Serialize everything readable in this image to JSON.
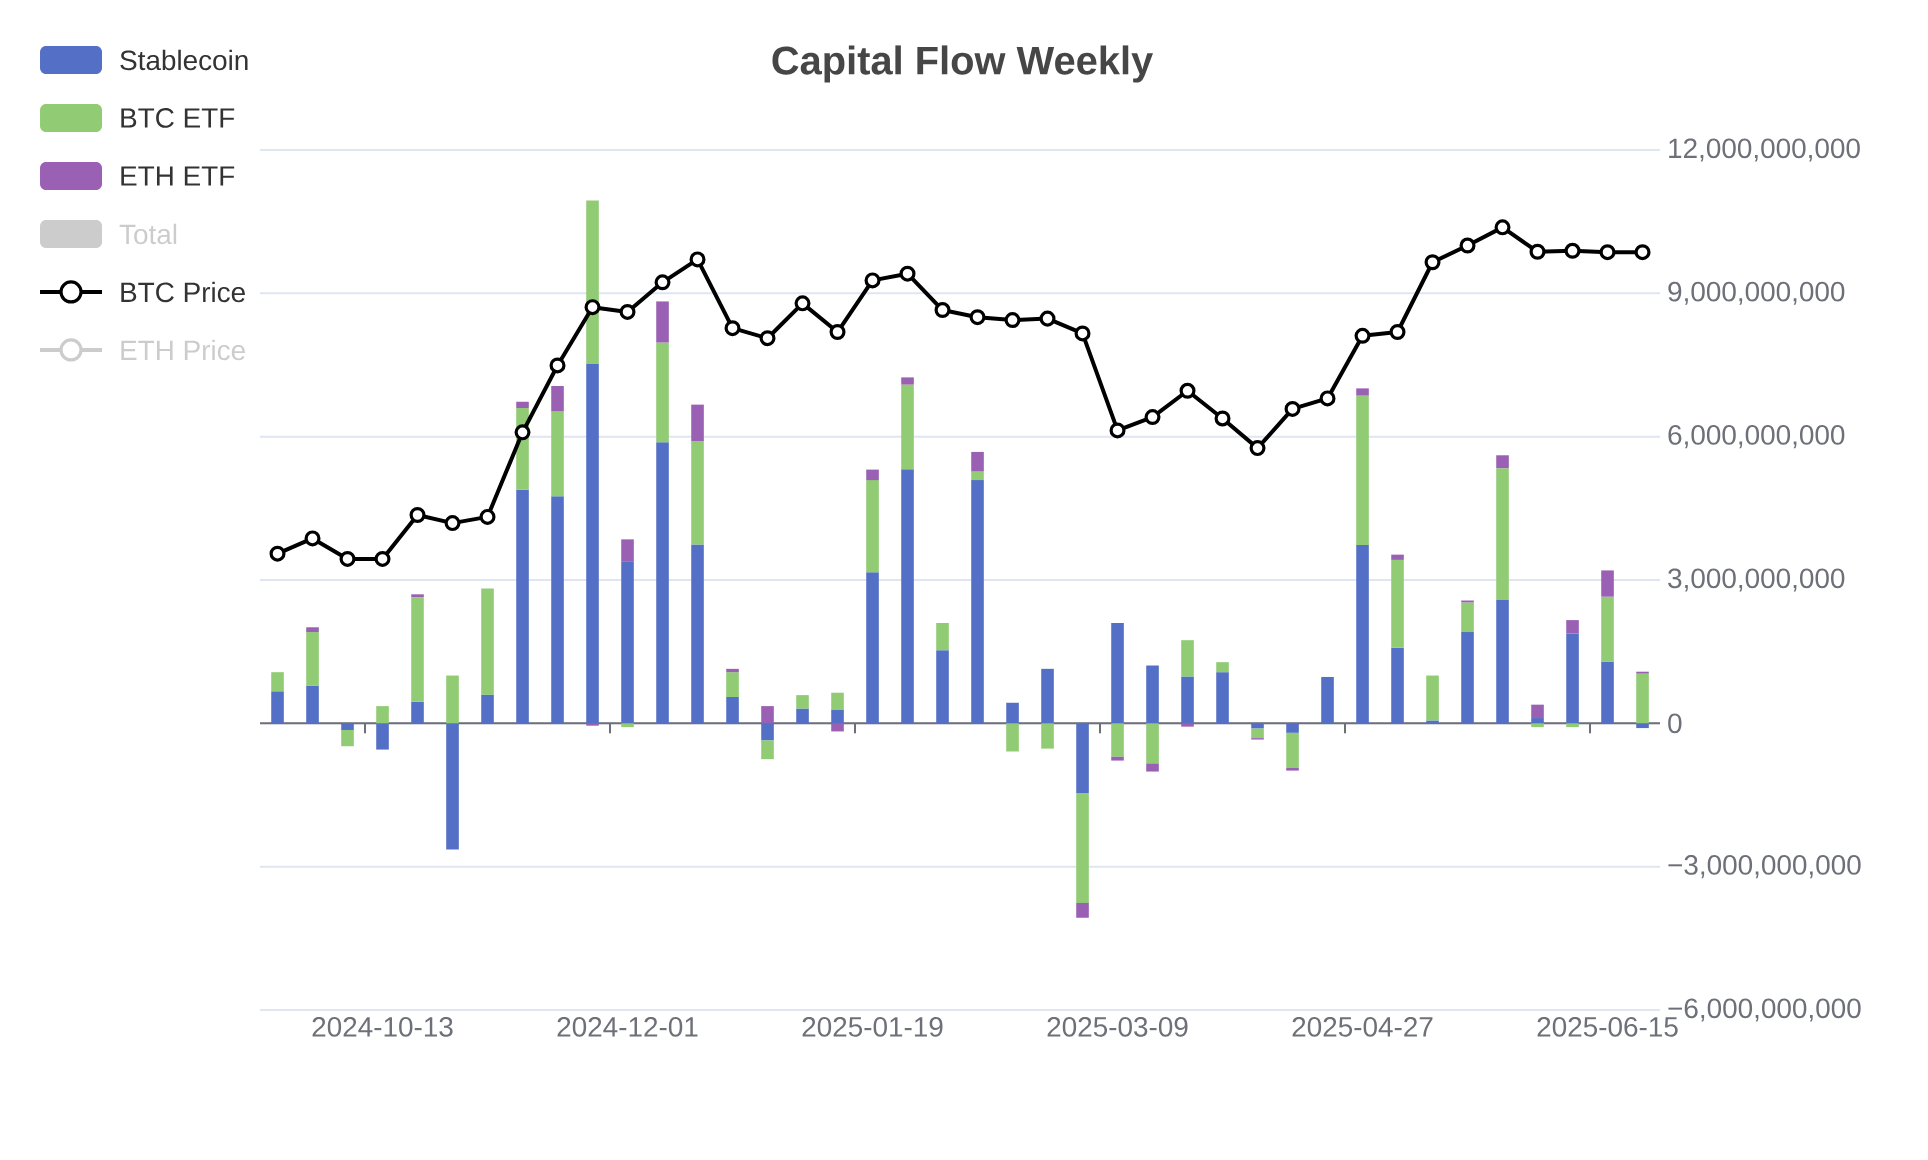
{
  "chart_data": {
    "type": "bar",
    "title": "Capital Flow Weekly",
    "stacked": true,
    "grid": "y",
    "legend": "top left",
    "categories": [
      null,
      null,
      null,
      "2024-10-13",
      null,
      null,
      null,
      null,
      null,
      null,
      "2024-12-01",
      null,
      null,
      null,
      null,
      null,
      null,
      "2025-01-19",
      null,
      null,
      null,
      null,
      null,
      null,
      "2025-03-09",
      null,
      null,
      null,
      null,
      null,
      null,
      "2025-04-27",
      null,
      null,
      null,
      null,
      null,
      null,
      "2025-06-15",
      null
    ],
    "ylim": [
      -6000000000,
      12000000000
    ],
    "yticks": [
      {
        "value": -6000000000,
        "label": "−6,000,000,000"
      },
      {
        "value": -3000000000,
        "label": "−3,000,000,000"
      },
      {
        "value": 0,
        "label": "0"
      },
      {
        "value": 3000000000,
        "label": "3,000,000,000"
      },
      {
        "value": 6000000000,
        "label": "6,000,000,000"
      },
      {
        "value": 9000000000,
        "label": "9,000,000,000"
      },
      {
        "value": 12000000000,
        "label": "12,000,000,000"
      }
    ],
    "series": [
      {
        "name": "Stablecoin",
        "color": "#5470c6",
        "values": [
          670000000,
          790000000,
          -140000000,
          -550000000,
          450000000,
          -2640000000,
          600000000,
          4890000000,
          4750000000,
          7520000000,
          3390000000,
          5880000000,
          3740000000,
          550000000,
          -360000000,
          310000000,
          290000000,
          3160000000,
          5320000000,
          1530000000,
          5090000000,
          430000000,
          1140000000,
          -1460000000,
          2100000000,
          1210000000,
          980000000,
          1070000000,
          -110000000,
          -200000000,
          970000000,
          3730000000,
          1580000000,
          60000000,
          1910000000,
          2580000000,
          110000000,
          1880000000,
          1290000000,
          -100000000
        ]
      },
      {
        "name": "BTC ETF",
        "color": "#91cc75",
        "values": [
          400000000,
          1120000000,
          -340000000,
          360000000,
          2190000000,
          1000000000,
          2220000000,
          1710000000,
          1780000000,
          3420000000,
          -80000000,
          2090000000,
          2160000000,
          520000000,
          -390000000,
          280000000,
          350000000,
          1930000000,
          1770000000,
          570000000,
          180000000,
          -590000000,
          -530000000,
          -2300000000,
          -700000000,
          -840000000,
          760000000,
          210000000,
          -200000000,
          -730000000,
          null,
          3130000000,
          1840000000,
          940000000,
          620000000,
          2760000000,
          -80000000,
          -80000000,
          1360000000,
          1040000000
        ]
      },
      {
        "name": "ETH ETF",
        "color": "#9a60b4",
        "values": [
          null,
          100000000,
          null,
          null,
          60000000,
          null,
          null,
          130000000,
          530000000,
          -50000000,
          460000000,
          860000000,
          770000000,
          70000000,
          360000000,
          null,
          -170000000,
          220000000,
          150000000,
          null,
          410000000,
          null,
          null,
          -310000000,
          -80000000,
          -170000000,
          -70000000,
          null,
          -30000000,
          -60000000,
          null,
          150000000,
          110000000,
          null,
          40000000,
          270000000,
          280000000,
          280000000,
          550000000,
          40000000
        ]
      },
      {
        "name": "Total",
        "color": "#cccccc",
        "values": [
          null,
          null,
          null,
          null,
          null,
          null,
          null,
          null,
          null,
          null,
          null,
          null,
          null,
          null,
          null,
          null,
          null,
          null,
          null,
          null,
          null,
          null,
          null,
          null,
          null,
          null,
          null,
          null,
          null,
          null,
          null,
          null,
          null,
          null,
          null,
          null,
          null,
          null,
          null,
          null
        ]
      },
      {
        "name": "BTC Price",
        "type": "line",
        "marker": "circle",
        "color": "#000000",
        "values": [
          3550000000,
          3870000000,
          3440000000,
          3440000000,
          4360000000,
          4190000000,
          4320000000,
          6090000000,
          7490000000,
          8710000000,
          8610000000,
          9230000000,
          9710000000,
          8270000000,
          8060000000,
          8790000000,
          8190000000,
          9270000000,
          9410000000,
          8650000000,
          8500000000,
          8440000000,
          8470000000,
          8160000000,
          6130000000,
          6410000000,
          6960000000,
          6380000000,
          5760000000,
          6580000000,
          6800000000,
          8110000000,
          8190000000,
          9650000000,
          10000000000,
          10380000000,
          9870000000,
          9890000000,
          9860000000,
          9860000000
        ]
      },
      {
        "name": "ETH Price",
        "type": "line",
        "marker": "circle",
        "color": "#cccccc",
        "values": [
          null,
          null,
          null,
          null,
          null,
          null,
          null,
          null,
          null,
          null,
          null,
          null,
          null,
          null,
          null,
          null,
          null,
          null,
          null,
          null,
          null,
          null,
          null,
          null,
          null,
          null,
          null,
          null,
          null,
          null,
          null,
          null,
          null,
          null,
          null,
          null,
          null,
          null,
          null,
          null
        ]
      }
    ]
  }
}
